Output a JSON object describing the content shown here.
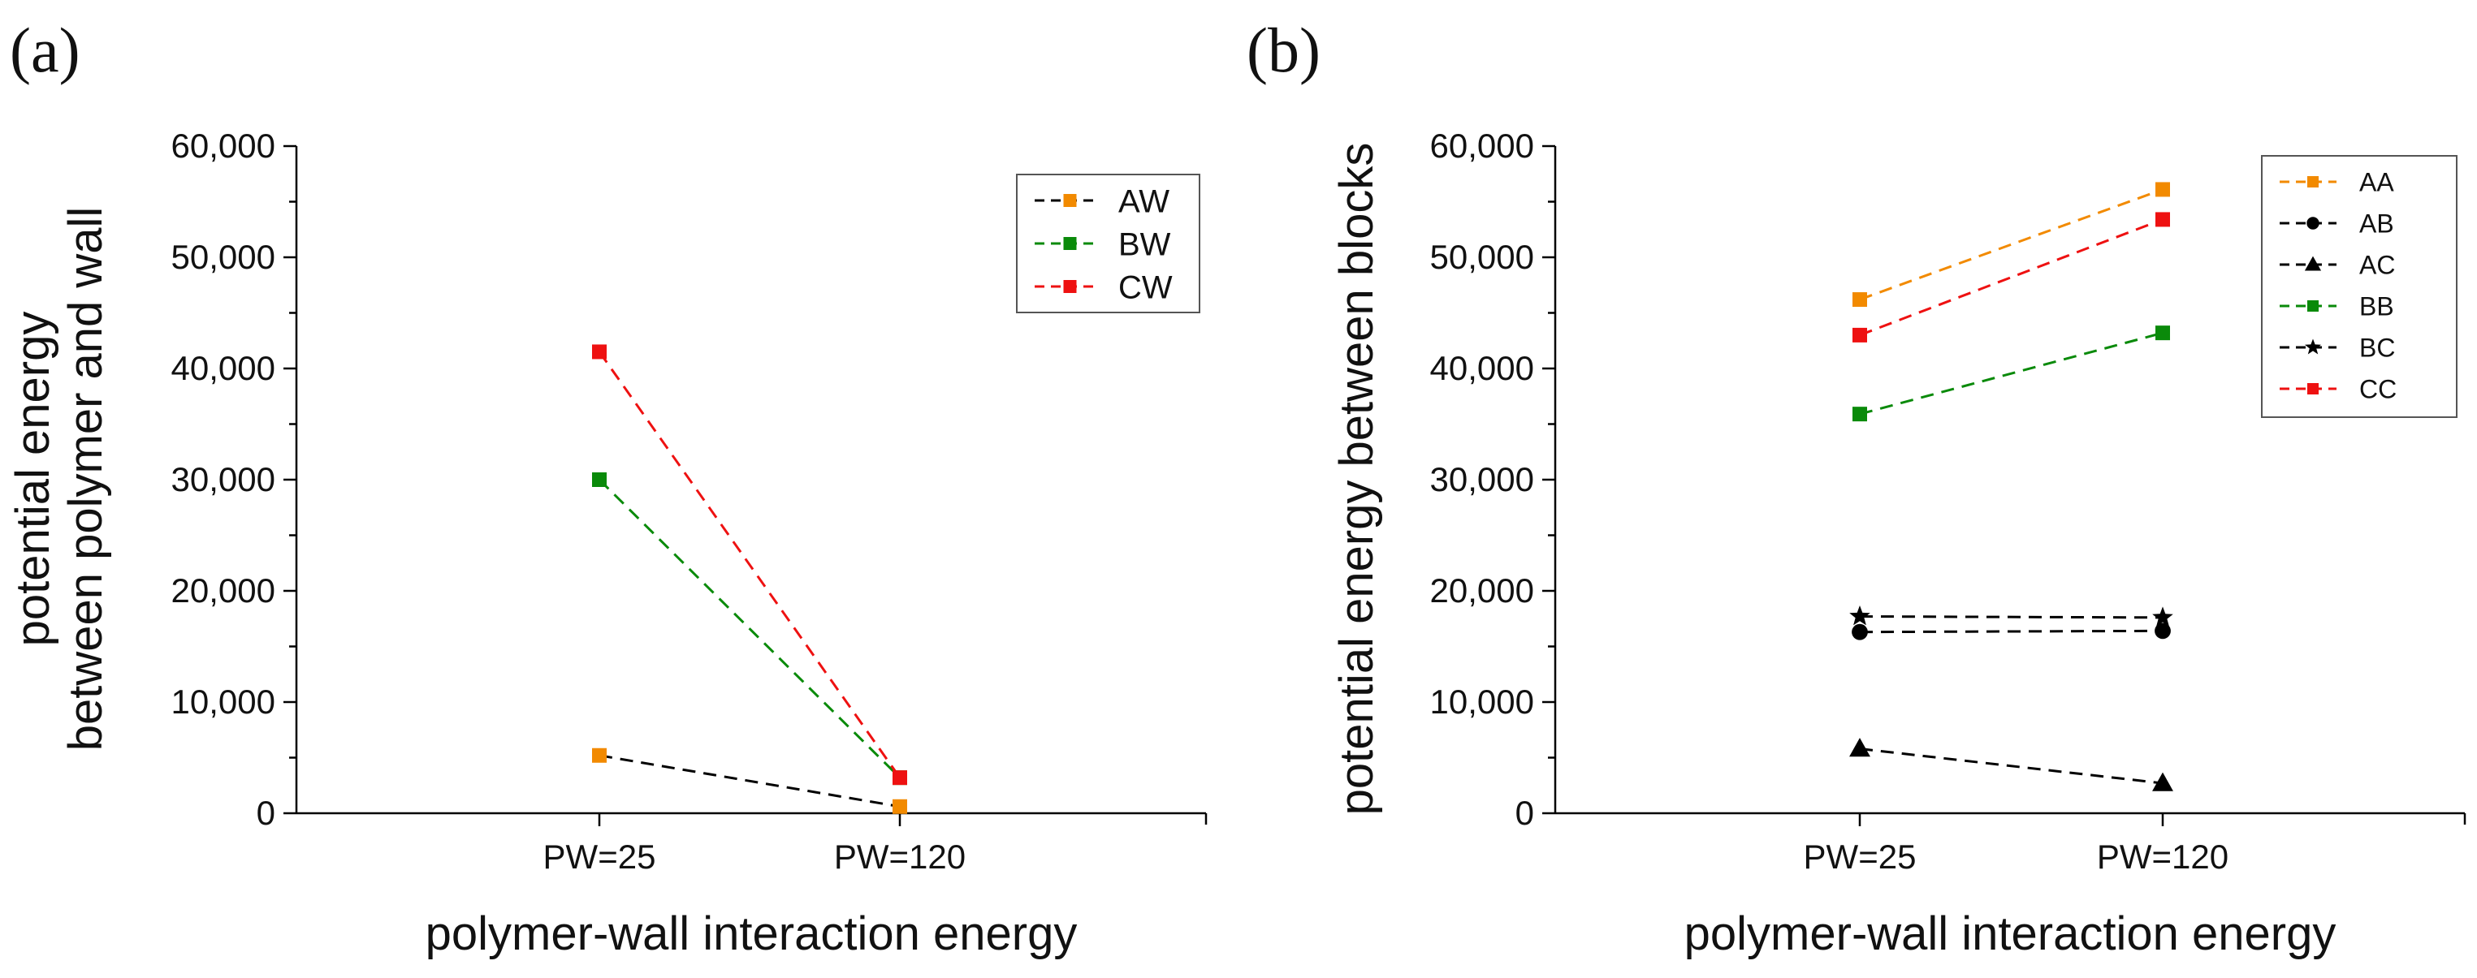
{
  "chart_data": [
    {
      "panel_label": "(a)",
      "type": "line",
      "categories": [
        "PW=25",
        "PW=120"
      ],
      "xlabel": "polymer-wall interaction energy",
      "ylabel_lines": [
        "potential energy",
        "between polymer and wall"
      ],
      "ylim": [
        0,
        60000
      ],
      "y_ticks": [
        0,
        10000,
        20000,
        30000,
        40000,
        50000,
        60000
      ],
      "y_tick_labels": [
        "0",
        "10,000",
        "20,000",
        "30,000",
        "40,000",
        "50,000",
        "60,000"
      ],
      "legend_position": "top-right",
      "series": [
        {
          "name": "AW",
          "line_color": "#000000",
          "marker_color": "#f28a00",
          "marker": "square",
          "values": [
            5200,
            600
          ]
        },
        {
          "name": "BW",
          "line_color": "#0a8a0a",
          "marker_color": "#0a8a0a",
          "marker": "square",
          "values": [
            30000,
            3200
          ]
        },
        {
          "name": "CW",
          "line_color": "#ee1111",
          "marker_color": "#ee1111",
          "marker": "square",
          "values": [
            41500,
            3200
          ]
        }
      ]
    },
    {
      "panel_label": "(b)",
      "type": "line",
      "categories": [
        "PW=25",
        "PW=120"
      ],
      "xlabel": "polymer-wall interaction energy",
      "ylabel_lines": [
        "potential energy between blocks"
      ],
      "ylim": [
        0,
        60000
      ],
      "y_ticks": [
        0,
        10000,
        20000,
        30000,
        40000,
        50000,
        60000
      ],
      "y_tick_labels": [
        "0",
        "10,000",
        "20,000",
        "30,000",
        "40,000",
        "50,000",
        "60,000"
      ],
      "legend_position": "top-right",
      "series": [
        {
          "name": "AA",
          "line_color": "#f28a00",
          "marker_color": "#f28a00",
          "marker": "square",
          "values": [
            46200,
            56100
          ]
        },
        {
          "name": "AB",
          "line_color": "#000000",
          "marker_color": "#000000",
          "marker": "circle",
          "values": [
            16300,
            16400
          ]
        },
        {
          "name": "AC",
          "line_color": "#000000",
          "marker_color": "#000000",
          "marker": "triangle",
          "values": [
            5800,
            2700
          ]
        },
        {
          "name": "BB",
          "line_color": "#0a8a0a",
          "marker_color": "#0a8a0a",
          "marker": "square",
          "values": [
            35900,
            43200
          ]
        },
        {
          "name": "BC",
          "line_color": "#000000",
          "marker_color": "#000000",
          "marker": "star",
          "values": [
            17700,
            17600
          ]
        },
        {
          "name": "CC",
          "line_color": "#ee1111",
          "marker_color": "#ee1111",
          "marker": "square",
          "values": [
            43000,
            53400
          ]
        }
      ]
    }
  ]
}
